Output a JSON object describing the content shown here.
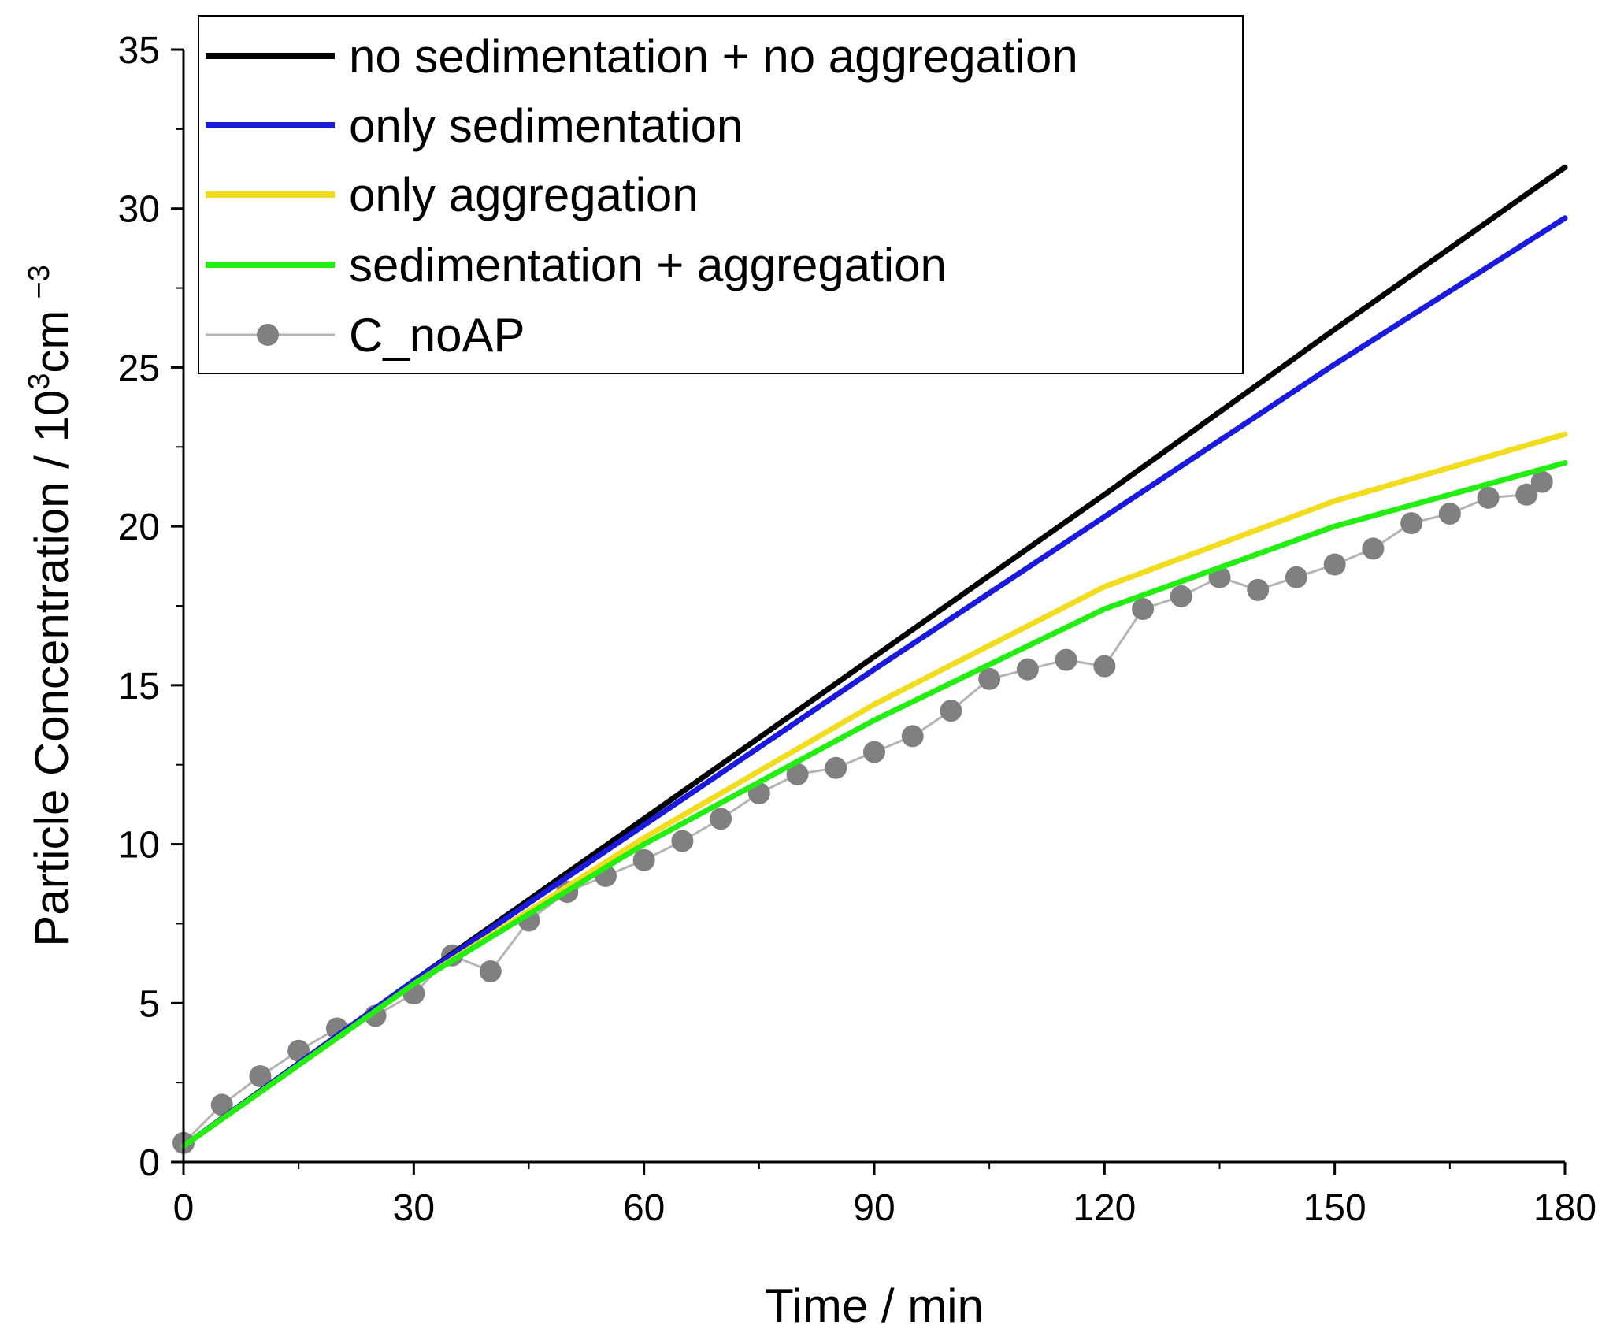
{
  "chart_data": {
    "type": "line",
    "xlabel": "Time / min",
    "ylabel": {
      "prefix": "Particle Concentration / 10",
      "sup1": "3",
      "mid": "cm",
      "sup2": "−3"
    },
    "xlim": [
      0,
      180
    ],
    "ylim": [
      0,
      35
    ],
    "xticks": [
      0,
      30,
      60,
      90,
      120,
      150,
      180
    ],
    "yticks": [
      0,
      5,
      10,
      15,
      20,
      25,
      30,
      35
    ],
    "legend_position": "top-left",
    "grid": false,
    "series": [
      {
        "name": "no sedimentation + no aggregation",
        "color": "#000000",
        "x": [
          0,
          30,
          60,
          90,
          120,
          150,
          180
        ],
        "y": [
          0.5,
          5.7,
          10.8,
          15.9,
          21.0,
          26.2,
          31.3
        ]
      },
      {
        "name": "only sedimentation",
        "color": "#1a1adc",
        "x": [
          0,
          30,
          60,
          90,
          120,
          150,
          180
        ],
        "y": [
          0.5,
          5.7,
          10.6,
          15.5,
          20.3,
          25.1,
          29.7
        ]
      },
      {
        "name": "only aggregation",
        "color": "#f2dc1e",
        "x": [
          0,
          30,
          45,
          60,
          90,
          120,
          150,
          180
        ],
        "y": [
          0.5,
          5.6,
          7.9,
          10.2,
          14.4,
          18.1,
          20.8,
          22.9
        ]
      },
      {
        "name": "sedimentation + aggregation",
        "color": "#22ee11",
        "x": [
          0,
          30,
          45,
          60,
          90,
          120,
          150,
          180
        ],
        "y": [
          0.5,
          5.6,
          7.8,
          10.0,
          13.9,
          17.4,
          20.0,
          22.0
        ]
      },
      {
        "name": "C_noAP",
        "color": "#808080",
        "line_color": "#b4b4b4",
        "marker": "circle",
        "x": [
          0,
          5,
          10,
          15,
          20,
          25,
          30,
          35,
          40,
          45,
          50,
          55,
          60,
          65,
          70,
          75,
          80,
          85,
          90,
          95,
          100,
          105,
          110,
          115,
          120,
          125,
          130,
          135,
          140,
          145,
          150,
          155,
          160,
          165,
          170,
          175,
          177
        ],
        "y": [
          0.6,
          1.8,
          2.7,
          3.5,
          4.2,
          4.6,
          5.3,
          6.5,
          6.0,
          7.6,
          8.5,
          9.0,
          9.5,
          10.1,
          10.8,
          11.6,
          12.2,
          12.4,
          12.9,
          13.4,
          14.2,
          15.2,
          15.5,
          15.8,
          15.6,
          17.4,
          17.8,
          18.4,
          18.0,
          18.4,
          18.8,
          19.3,
          20.1,
          20.4,
          20.9,
          21.0,
          21.4
        ]
      }
    ]
  }
}
